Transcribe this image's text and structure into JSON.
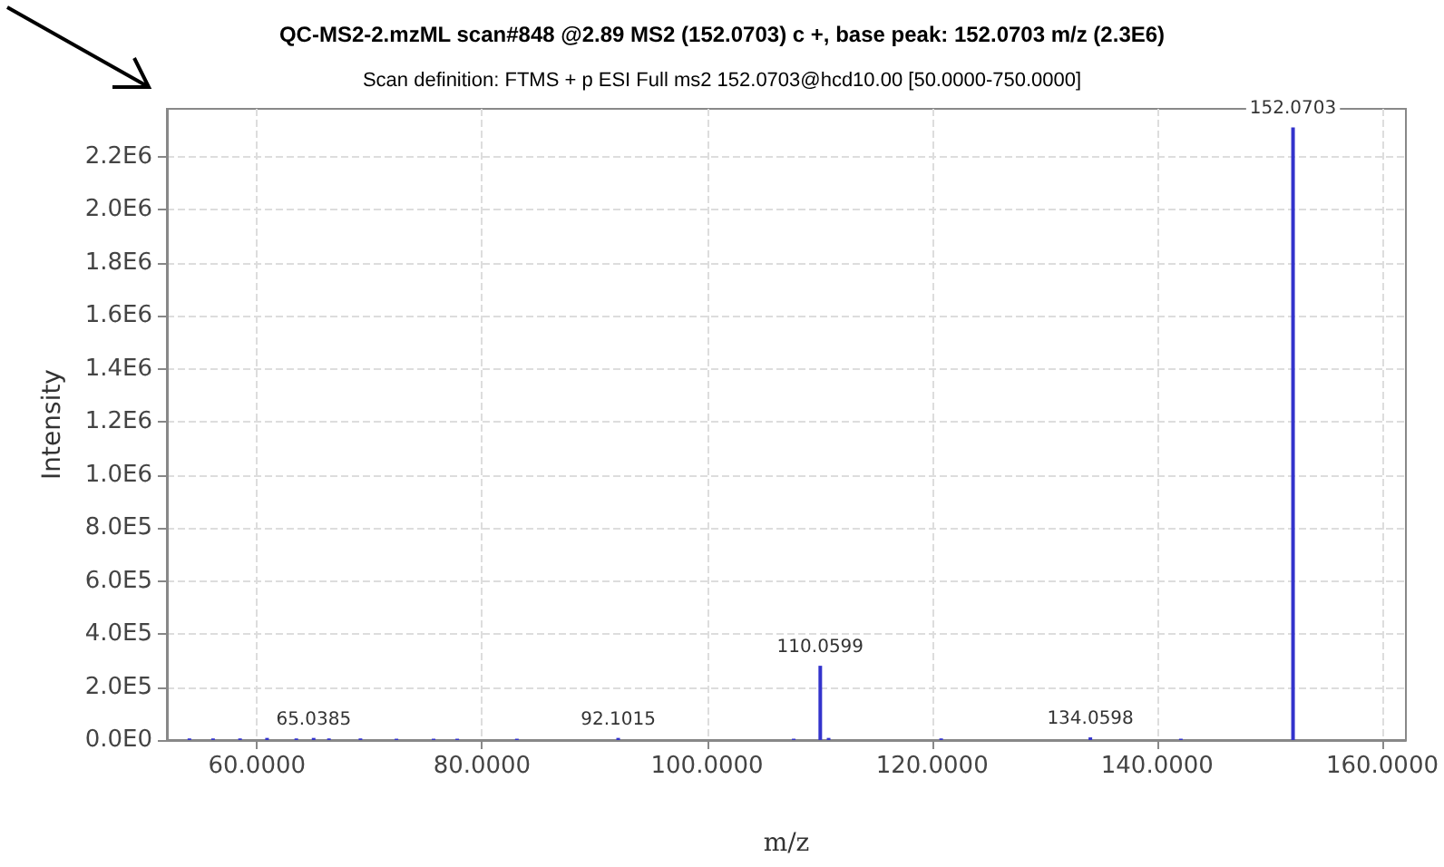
{
  "chart_data": {
    "type": "bar",
    "title": "QC-MS2-2.mzML scan#848 @2.89 MS2 (152.0703) c +, base peak: 152.0703 m/z (2.3E6)",
    "subtitle": "Scan definition: FTMS + p ESI Full ms2 152.0703@hcd10.00 [50.0000-750.0000]",
    "xlabel": "m/z",
    "ylabel": "Intensity",
    "x": [
      54.0,
      56.1,
      58.5,
      60.9,
      63.5,
      65.0385,
      66.4,
      69.2,
      72.4,
      75.7,
      77.8,
      83.1,
      92.1015,
      107.7,
      110.0599,
      110.8,
      120.8,
      134.0598,
      142.1,
      152.0703
    ],
    "values": [
      6000,
      6000,
      6000,
      8000,
      6000,
      8000,
      6000,
      6000,
      5000,
      5000,
      5000,
      5000,
      8000,
      5000,
      280000,
      8000,
      6000,
      10000,
      5000,
      2310000
    ],
    "annotations": [
      {
        "text": "65.0385",
        "x": 65.0385,
        "y": 8000
      },
      {
        "text": "92.1015",
        "x": 92.1015,
        "y": 8000
      },
      {
        "text": "110.0599",
        "x": 110.0599,
        "y": 280000
      },
      {
        "text": "134.0598",
        "x": 134.0598,
        "y": 10000
      },
      {
        "text": "152.0703",
        "x": 152.0703,
        "y": 2310000
      }
    ],
    "color": "#3333cc",
    "xlim": [
      52,
      162.1
    ],
    "xticks": [
      {
        "value": 60,
        "label": "60.0000"
      },
      {
        "value": 80,
        "label": "80.0000"
      },
      {
        "value": 100,
        "label": "100.0000"
      },
      {
        "value": 120,
        "label": "120.0000"
      },
      {
        "value": 140,
        "label": "140.0000"
      },
      {
        "value": 160,
        "label": "160.0000"
      }
    ],
    "ylim": [
      0,
      2380000
    ],
    "yticks": [
      {
        "value": 0,
        "label": "0.0E0"
      },
      {
        "value": 200000,
        "label": "2.0E5"
      },
      {
        "value": 400000,
        "label": "4.0E5"
      },
      {
        "value": 600000,
        "label": "6.0E5"
      },
      {
        "value": 800000,
        "label": "8.0E5"
      },
      {
        "value": 1000000,
        "label": "1.0E6"
      },
      {
        "value": 1200000,
        "label": "1.2E6"
      },
      {
        "value": 1400000,
        "label": "1.4E6"
      },
      {
        "value": 1600000,
        "label": "1.6E6"
      },
      {
        "value": 1800000,
        "label": "1.8E6"
      },
      {
        "value": 2000000,
        "label": "2.0E6"
      },
      {
        "value": 2200000,
        "label": "2.2E6"
      }
    ],
    "grid": true
  }
}
